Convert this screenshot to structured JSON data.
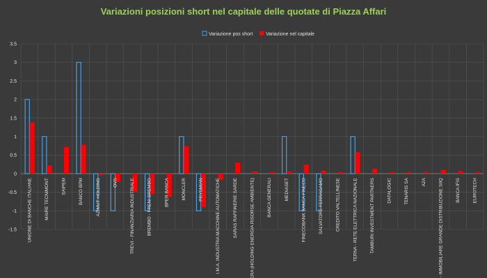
{
  "chart_data": {
    "type": "bar",
    "title": "Variazioni posizioni short nel capitale delle quotate di Piazza Affari",
    "xlabel": "",
    "ylabel": "",
    "ylim": [
      -1.5,
      3.5
    ],
    "yticks": [
      3.5,
      3,
      2.5,
      2,
      1.5,
      1,
      0.5,
      0,
      -0.5,
      -1,
      -1.5
    ],
    "grid": true,
    "legend_position": "top-center",
    "categories": [
      "UNIONE DI BANCHE ITALIANE",
      "MAIRE TECNIMONT",
      "SAIPEM",
      "BANCO BPM",
      "AZIMUT HOLDING",
      "OVS",
      "TREVI - FINANZIARIA INDUSTRIALE",
      "BREMBO - FRENI BREMBO",
      "BPER BANCA",
      "MONCLER",
      "PRYSMIAN",
      "I.M.A. INDUSTRIA MACCHINE AUTOMATICHE",
      "SARAS RAFFINERIE SARDE",
      "HERA (HOLDING ENERGIA RISORSE AMBIENTE)",
      "BANCA GENERALI",
      "MEDIASET",
      "FINECOBANK BANCA FINECO",
      "SALVATORE FERRAGAMO",
      "CREDITO VALTELLINESE",
      "TERNA - RETE ELETTRICA NAZIONALE",
      "TAMBURI INVESTMENT PARTNERS",
      "DATALOGIC",
      "TENARIS SA",
      "A2A",
      "IGD - IMMOBILIARE GRANDE DISTRIBUZIONE SIIQ",
      "BANCA IFIS",
      "EUROTECH"
    ],
    "series": [
      {
        "name": "Variazione pos short",
        "style": "outline",
        "color": "#4a9fe0",
        "values": [
          2,
          1,
          0,
          3,
          -1,
          -1,
          0,
          -1,
          0,
          1,
          -1,
          0,
          0,
          0,
          0,
          1,
          -1,
          -1,
          0,
          1,
          0,
          0,
          0,
          0,
          0,
          0,
          0
        ]
      },
      {
        "name": "Variazione nel capitale",
        "style": "filled",
        "color": "#ff0000",
        "values": [
          1.38,
          0.22,
          0.72,
          0.78,
          -0.04,
          -0.22,
          -0.48,
          -0.55,
          -0.62,
          0.74,
          -0.9,
          -0.16,
          0.3,
          0.06,
          0.04,
          0.05,
          0.24,
          0.08,
          0.04,
          0.58,
          0.13,
          0.04,
          0.04,
          0.04,
          0.1,
          0.07,
          0.04
        ]
      }
    ]
  }
}
